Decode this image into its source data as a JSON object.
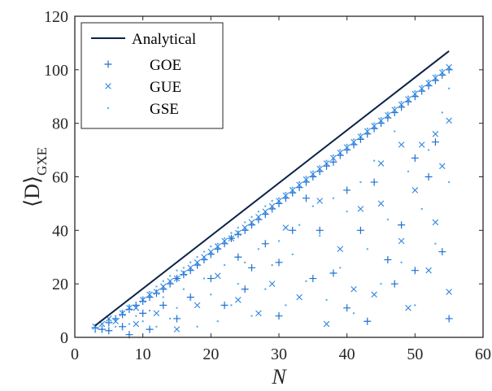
{
  "chart_data": {
    "type": "scatter",
    "title": "",
    "xlabel": "N",
    "ylabel_main": "⟨D⟩",
    "ylabel_sub": "GXE",
    "xlim": [
      0,
      60
    ],
    "ylim": [
      0,
      120
    ],
    "xticks": [
      "0",
      "10",
      "20",
      "30",
      "40",
      "50",
      "60"
    ],
    "yticks": [
      "0",
      "20",
      "40",
      "60",
      "80",
      "100",
      "120"
    ],
    "grid": false,
    "legend_position": "top-left",
    "analytical": {
      "name": "Analytical",
      "color": "#0b2247",
      "x": [
        3,
        55
      ],
      "y": [
        4.4,
        107.0
      ]
    },
    "series": [
      {
        "name": "GOE",
        "marker": "plus",
        "color": "#1f6fd0",
        "points": [
          [
            3,
            3.6
          ],
          [
            4,
            3
          ],
          [
            5,
            5.5
          ],
          [
            5,
            2.5
          ],
          [
            6,
            7
          ],
          [
            7,
            8.5
          ],
          [
            7,
            4
          ],
          [
            8,
            10.5
          ],
          [
            8,
            1
          ],
          [
            9,
            12
          ],
          [
            10,
            13.5
          ],
          [
            10,
            9
          ],
          [
            11,
            15
          ],
          [
            11,
            3
          ],
          [
            12,
            16.5
          ],
          [
            13,
            18
          ],
          [
            13,
            12
          ],
          [
            14,
            20
          ],
          [
            15,
            22
          ],
          [
            15,
            7
          ],
          [
            16,
            23.5
          ],
          [
            17,
            25
          ],
          [
            17,
            15
          ],
          [
            18,
            27
          ],
          [
            19,
            29
          ],
          [
            20,
            31
          ],
          [
            20,
            22
          ],
          [
            21,
            33
          ],
          [
            22,
            35
          ],
          [
            22,
            12
          ],
          [
            23,
            37
          ],
          [
            24,
            38.5
          ],
          [
            24,
            30
          ],
          [
            25,
            40
          ],
          [
            26,
            42
          ],
          [
            26,
            26
          ],
          [
            27,
            44
          ],
          [
            28,
            46
          ],
          [
            28,
            35
          ],
          [
            29,
            48
          ],
          [
            30,
            50
          ],
          [
            30,
            28
          ],
          [
            31,
            52
          ],
          [
            32,
            54
          ],
          [
            32,
            40
          ],
          [
            33,
            56
          ],
          [
            34,
            58
          ],
          [
            34,
            52
          ],
          [
            35,
            60
          ],
          [
            36,
            62
          ],
          [
            36,
            40
          ],
          [
            37,
            64
          ],
          [
            38,
            65.5
          ],
          [
            38,
            24
          ],
          [
            39,
            68
          ],
          [
            40,
            70
          ],
          [
            40,
            55
          ],
          [
            41,
            72
          ],
          [
            42,
            74
          ],
          [
            42,
            40
          ],
          [
            43,
            76
          ],
          [
            44,
            78
          ],
          [
            44,
            58
          ],
          [
            45,
            80
          ],
          [
            46,
            82
          ],
          [
            46,
            29
          ],
          [
            47,
            84
          ],
          [
            48,
            86
          ],
          [
            48,
            42
          ],
          [
            49,
            88
          ],
          [
            50,
            90
          ],
          [
            50,
            67
          ],
          [
            51,
            92
          ],
          [
            52,
            94
          ],
          [
            52,
            60
          ],
          [
            53,
            96
          ],
          [
            54,
            98
          ],
          [
            54,
            32
          ],
          [
            55,
            100
          ],
          [
            55,
            7
          ],
          [
            25,
            18
          ],
          [
            30,
            8
          ],
          [
            35,
            22
          ],
          [
            40,
            11
          ],
          [
            43,
            6
          ],
          [
            47,
            20
          ],
          [
            50,
            25
          ],
          [
            53,
            73
          ]
        ]
      },
      {
        "name": "GUE",
        "marker": "x",
        "color": "#2f85e2",
        "points": [
          [
            3,
            4
          ],
          [
            4,
            5
          ],
          [
            5,
            7
          ],
          [
            6,
            6
          ],
          [
            7,
            9
          ],
          [
            8,
            11
          ],
          [
            9,
            11
          ],
          [
            10,
            14
          ],
          [
            11,
            16
          ],
          [
            12,
            17
          ],
          [
            13,
            19
          ],
          [
            14,
            21
          ],
          [
            15,
            22
          ],
          [
            16,
            24
          ],
          [
            17,
            26
          ],
          [
            18,
            28
          ],
          [
            19,
            30
          ],
          [
            20,
            32
          ],
          [
            21,
            34
          ],
          [
            22,
            36
          ],
          [
            23,
            37
          ],
          [
            24,
            39
          ],
          [
            25,
            41
          ],
          [
            26,
            43
          ],
          [
            27,
            45
          ],
          [
            28,
            47
          ],
          [
            29,
            49
          ],
          [
            30,
            51
          ],
          [
            31,
            53
          ],
          [
            32,
            55
          ],
          [
            33,
            57
          ],
          [
            34,
            59
          ],
          [
            35,
            61
          ],
          [
            36,
            63
          ],
          [
            37,
            65
          ],
          [
            38,
            67
          ],
          [
            39,
            69
          ],
          [
            40,
            71
          ],
          [
            41,
            73
          ],
          [
            42,
            75
          ],
          [
            43,
            77
          ],
          [
            44,
            79
          ],
          [
            45,
            81
          ],
          [
            46,
            83
          ],
          [
            47,
            85
          ],
          [
            48,
            87
          ],
          [
            49,
            89
          ],
          [
            50,
            91
          ],
          [
            51,
            93
          ],
          [
            52,
            95
          ],
          [
            53,
            97
          ],
          [
            54,
            99
          ],
          [
            55,
            101
          ],
          [
            55,
            81
          ],
          [
            55,
            17
          ],
          [
            54,
            64
          ],
          [
            53,
            43
          ],
          [
            52,
            25
          ],
          [
            51,
            72
          ],
          [
            49,
            11
          ],
          [
            48,
            36
          ],
          [
            45,
            65
          ],
          [
            44,
            16
          ],
          [
            42,
            48
          ],
          [
            41,
            18
          ],
          [
            39,
            33
          ],
          [
            37,
            5
          ],
          [
            36,
            51
          ],
          [
            33,
            15
          ],
          [
            31,
            41
          ],
          [
            29,
            20
          ],
          [
            27,
            9
          ],
          [
            24,
            14
          ],
          [
            21,
            23
          ],
          [
            18,
            12
          ],
          [
            15,
            3
          ],
          [
            12,
            9
          ],
          [
            9,
            5
          ],
          [
            45,
            50
          ],
          [
            48,
            72
          ],
          [
            50,
            55
          ],
          [
            53,
            76
          ]
        ]
      },
      {
        "name": "GSE",
        "marker": "dot",
        "color": "#5aaee8",
        "points": [
          [
            3,
            2
          ],
          [
            4,
            4
          ],
          [
            5,
            6
          ],
          [
            6,
            8
          ],
          [
            7,
            10
          ],
          [
            8,
            12
          ],
          [
            9,
            13
          ],
          [
            10,
            15
          ],
          [
            11,
            17
          ],
          [
            12,
            19
          ],
          [
            13,
            21
          ],
          [
            14,
            23
          ],
          [
            15,
            25
          ],
          [
            16,
            26
          ],
          [
            17,
            28
          ],
          [
            18,
            30
          ],
          [
            19,
            32
          ],
          [
            20,
            34
          ],
          [
            21,
            35
          ],
          [
            22,
            37
          ],
          [
            23,
            39
          ],
          [
            24,
            41
          ],
          [
            25,
            43
          ],
          [
            26,
            45
          ],
          [
            27,
            47
          ],
          [
            28,
            49
          ],
          [
            29,
            51
          ],
          [
            30,
            52
          ],
          [
            31,
            54
          ],
          [
            32,
            56
          ],
          [
            33,
            58
          ],
          [
            34,
            60
          ],
          [
            35,
            62
          ],
          [
            36,
            64
          ],
          [
            37,
            66
          ],
          [
            38,
            68
          ],
          [
            39,
            70
          ],
          [
            40,
            72
          ],
          [
            41,
            74
          ],
          [
            42,
            76
          ],
          [
            43,
            78
          ],
          [
            44,
            80
          ],
          [
            45,
            82
          ],
          [
            46,
            84
          ],
          [
            47,
            86
          ],
          [
            48,
            88
          ],
          [
            49,
            90
          ],
          [
            50,
            92
          ],
          [
            51,
            94
          ],
          [
            52,
            96
          ],
          [
            53,
            98
          ],
          [
            54,
            100
          ],
          [
            55,
            93
          ],
          [
            55,
            58
          ],
          [
            54,
            84
          ],
          [
            53,
            35
          ],
          [
            52,
            70
          ],
          [
            51,
            48
          ],
          [
            50,
            12
          ],
          [
            49,
            62
          ],
          [
            48,
            28
          ],
          [
            47,
            77
          ],
          [
            46,
            44
          ],
          [
            45,
            20
          ],
          [
            44,
            66
          ],
          [
            43,
            33
          ],
          [
            42,
            58
          ],
          [
            41,
            9
          ],
          [
            40,
            47
          ],
          [
            39,
            26
          ],
          [
            38,
            52
          ],
          [
            37,
            14
          ],
          [
            36,
            38
          ],
          [
            35,
            49
          ],
          [
            34,
            21
          ],
          [
            33,
            42
          ],
          [
            32,
            31
          ],
          [
            31,
            12
          ],
          [
            30,
            36
          ],
          [
            29,
            27
          ],
          [
            28,
            18
          ],
          [
            27,
            33
          ],
          [
            26,
            8
          ],
          [
            25,
            28
          ],
          [
            24,
            20
          ],
          [
            23,
            12
          ],
          [
            22,
            27
          ],
          [
            21,
            6
          ],
          [
            20,
            16
          ],
          [
            19,
            22
          ],
          [
            18,
            4
          ],
          [
            17,
            14
          ],
          [
            16,
            18
          ],
          [
            15,
            11
          ],
          [
            14,
            7
          ],
          [
            13,
            15
          ],
          [
            12,
            4
          ],
          [
            11,
            10
          ],
          [
            10,
            6
          ],
          [
            9,
            8
          ],
          [
            8,
            5
          ],
          [
            7,
            3
          ],
          [
            6,
            4
          ]
        ]
      }
    ]
  }
}
